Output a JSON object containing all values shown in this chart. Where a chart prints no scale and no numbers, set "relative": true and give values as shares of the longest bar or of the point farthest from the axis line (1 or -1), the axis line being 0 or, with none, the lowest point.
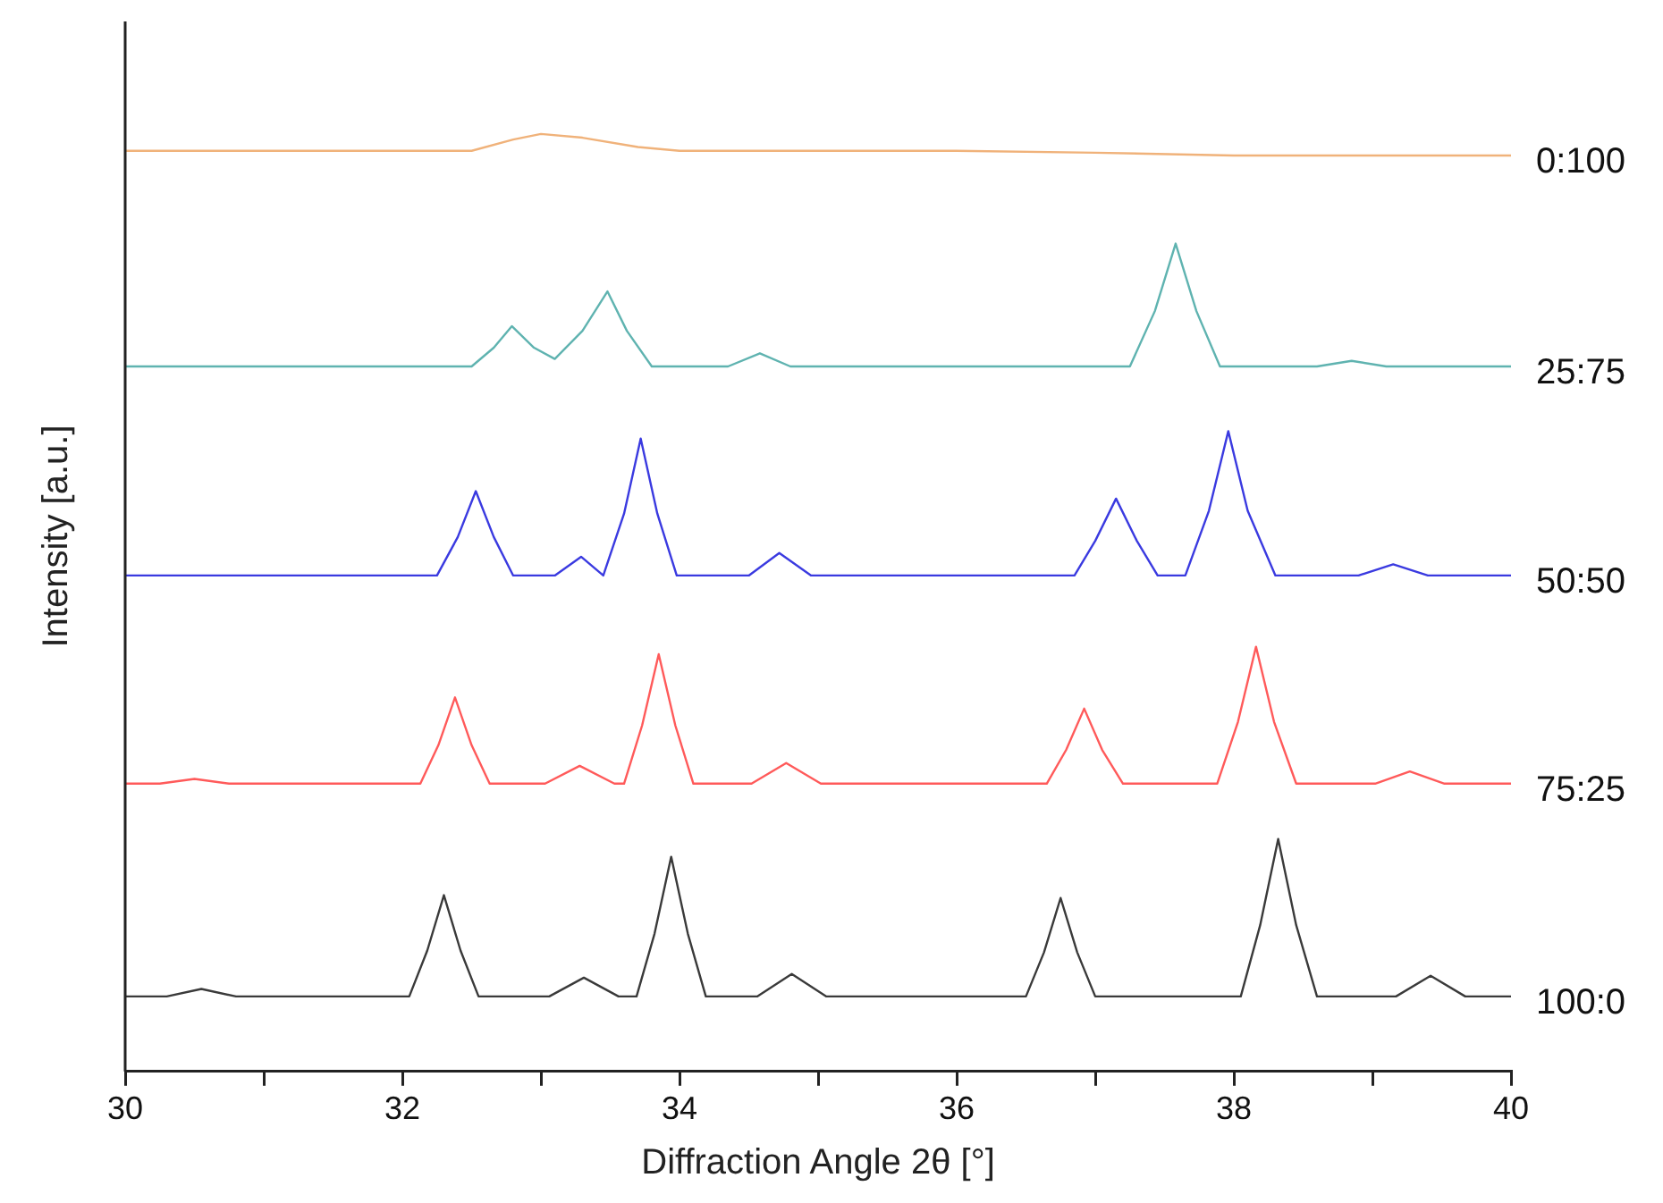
{
  "chart_data": {
    "type": "line",
    "relative": true,
    "xlabel": "Diffraction Angle 2θ [°]",
    "ylabel": "Intensity [a.u.]",
    "xlim": [
      30,
      40
    ],
    "xticks": [
      30,
      {
        "value": 31,
        "label": null
      },
      32,
      {
        "value": 33,
        "label": null
      },
      34,
      {
        "value": 35,
        "label": null
      },
      36,
      {
        "value": 37,
        "label": null
      },
      38,
      {
        "value": 39,
        "label": null
      },
      40
    ],
    "grid": false,
    "legend": false,
    "marker": "none",
    "line_style": "solid",
    "series": [
      {
        "name": "0:100",
        "color": "#f0b27a",
        "x": [
          30,
          32.5,
          32.8,
          33.0,
          33.3,
          33.7,
          34,
          36,
          37,
          38,
          40
        ],
        "values": [
          0.982,
          0.982,
          0.994,
          1.0,
          0.996,
          0.986,
          0.982,
          0.982,
          0.98,
          0.977,
          0.977
        ]
      },
      {
        "name": "25:75",
        "color": "#5fb3b0",
        "x": [
          30,
          32.5,
          32.66,
          32.79,
          32.95,
          33.1,
          33.3,
          33.48,
          33.62,
          33.8,
          34.35,
          34.58,
          34.8,
          37.25,
          37.43,
          37.58,
          37.73,
          37.9,
          38.6,
          38.85,
          39.1,
          40
        ],
        "values": [
          0.752,
          0.752,
          0.772,
          0.795,
          0.772,
          0.76,
          0.79,
          0.832,
          0.79,
          0.752,
          0.752,
          0.766,
          0.752,
          0.752,
          0.811,
          0.883,
          0.811,
          0.752,
          0.752,
          0.758,
          0.752,
          0.752
        ]
      },
      {
        "name": "50:50",
        "color": "#3a3ae0",
        "x": [
          30,
          32.25,
          32.4,
          32.53,
          32.66,
          32.8,
          33.1,
          33.29,
          33.45,
          33.6,
          33.72,
          33.84,
          33.98,
          34.5,
          34.72,
          34.95,
          36.85,
          37.0,
          37.15,
          37.3,
          37.45,
          37.65,
          37.82,
          37.96,
          38.1,
          38.3,
          38.9,
          39.15,
          39.4,
          40
        ],
        "values": [
          0.529,
          0.529,
          0.57,
          0.619,
          0.57,
          0.529,
          0.529,
          0.549,
          0.529,
          0.595,
          0.675,
          0.595,
          0.529,
          0.529,
          0.553,
          0.529,
          0.529,
          0.566,
          0.611,
          0.566,
          0.529,
          0.529,
          0.598,
          0.683,
          0.598,
          0.529,
          0.529,
          0.541,
          0.529,
          0.529
        ]
      },
      {
        "name": "75:25",
        "color": "#ff5a5a",
        "x": [
          30,
          30.25,
          30.5,
          30.75,
          32.13,
          32.26,
          32.38,
          32.5,
          32.63,
          33.03,
          33.28,
          33.53,
          33.6,
          33.73,
          33.85,
          33.97,
          34.1,
          34.52,
          34.77,
          35.02,
          36.65,
          36.79,
          36.92,
          37.05,
          37.2,
          37.88,
          38.03,
          38.16,
          38.29,
          38.45,
          39.02,
          39.27,
          39.52,
          40
        ],
        "values": [
          0.307,
          0.307,
          0.312,
          0.307,
          0.307,
          0.348,
          0.399,
          0.348,
          0.307,
          0.307,
          0.326,
          0.307,
          0.307,
          0.369,
          0.445,
          0.369,
          0.307,
          0.307,
          0.329,
          0.307,
          0.307,
          0.343,
          0.387,
          0.343,
          0.307,
          0.307,
          0.373,
          0.453,
          0.373,
          0.307,
          0.307,
          0.32,
          0.307,
          0.307
        ]
      },
      {
        "name": "100:0",
        "color": "#3a3a3a",
        "x": [
          30,
          30.3,
          30.55,
          30.8,
          32.05,
          32.18,
          32.3,
          32.42,
          32.55,
          33.06,
          33.31,
          33.56,
          33.69,
          33.82,
          33.94,
          34.06,
          34.19,
          34.56,
          34.81,
          35.06,
          36.5,
          36.63,
          36.75,
          36.87,
          37.0,
          38.05,
          38.19,
          38.32,
          38.45,
          38.6,
          39.17,
          39.42,
          39.67,
          40
        ],
        "values": [
          0.08,
          0.08,
          0.088,
          0.08,
          0.08,
          0.129,
          0.188,
          0.129,
          0.08,
          0.08,
          0.1,
          0.08,
          0.08,
          0.147,
          0.229,
          0.147,
          0.08,
          0.08,
          0.104,
          0.08,
          0.08,
          0.127,
          0.185,
          0.127,
          0.08,
          0.08,
          0.156,
          0.248,
          0.156,
          0.08,
          0.08,
          0.102,
          0.08,
          0.08
        ]
      }
    ]
  }
}
